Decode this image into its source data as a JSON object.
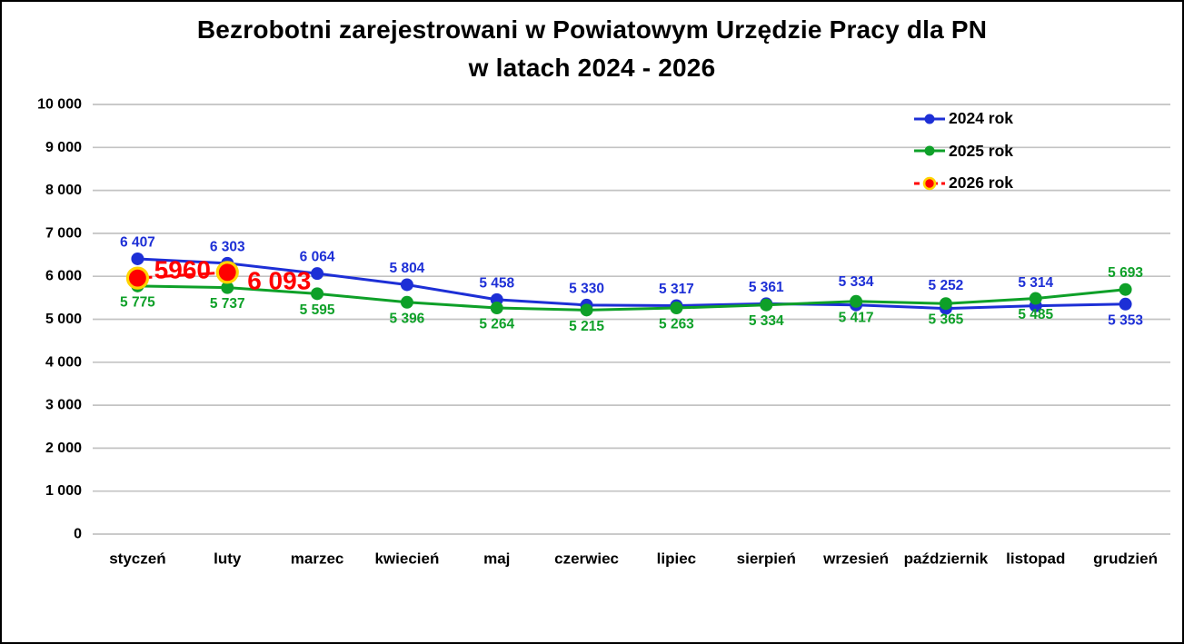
{
  "title": {
    "line1": "Bezrobotni zarejestrowani w Powiatowym Urzędzie Pracy dla PN",
    "line2": "w latach 2024 - 2026"
  },
  "colors": {
    "series_2024": "#1D2FD6",
    "series_2025": "#0EA028",
    "series_2026": "#FF0000",
    "series_2026_marker_ring": "#FFD400",
    "gridline": "#C3C3C3",
    "axis_text": "#000000",
    "background": "#FFFFFF"
  },
  "chart_data": {
    "type": "line",
    "title": "Bezrobotni zarejestrowani w Powiatowym Urzędzie Pracy dla PN w latach 2024 - 2026",
    "categories": [
      "styczeń",
      "luty",
      "marzec",
      "kwiecień",
      "maj",
      "czerwiec",
      "lipiec",
      "sierpień",
      "wrzesień",
      "październik",
      "listopad",
      "grudzień"
    ],
    "y_axis": {
      "min": 0,
      "max": 10000,
      "step": 1000,
      "tick_labels": [
        "0",
        "1 000",
        "2 000",
        "3 000",
        "4 000",
        "5 000",
        "6 000",
        "7 000",
        "8 000",
        "9 000",
        "10 000"
      ]
    },
    "grid": "horizontal",
    "legend_position": "top-right",
    "series": [
      {
        "name": "2024 rok",
        "color": "#1D2FD6",
        "line_style": "solid",
        "marker": "circle",
        "values": [
          6407,
          6303,
          6064,
          5804,
          5458,
          5330,
          5317,
          5361,
          5334,
          5252,
          5314,
          5353
        ],
        "labels": [
          "6 407",
          "6 303",
          "6 064",
          "5 804",
          "5 458",
          "5 330",
          "5 317",
          "5 361",
          "5 334",
          "5 252",
          "5 314",
          "5 353"
        ],
        "label_side": [
          "above",
          "above",
          "above",
          "above",
          "above",
          "above",
          "above",
          "above",
          "above",
          "above",
          "above",
          "below"
        ],
        "label_dy": [
          0,
          0,
          0,
          0,
          0,
          0,
          0,
          0,
          -7,
          -7,
          -7,
          0
        ]
      },
      {
        "name": "2025 rok",
        "color": "#0EA028",
        "line_style": "solid",
        "marker": "circle",
        "values": [
          5775,
          5737,
          5595,
          5396,
          5264,
          5215,
          5263,
          5334,
          5417,
          5365,
          5485,
          5693
        ],
        "labels": [
          "5 775",
          "5 737",
          "5 595",
          "5 396",
          "5 264",
          "5 215",
          "5 263",
          "5 334",
          "5 417",
          "5 365",
          "5 485",
          "5 693"
        ],
        "label_side": [
          "below",
          "below",
          "below",
          "below",
          "below",
          "below",
          "below",
          "below",
          "below",
          "below",
          "below",
          "above"
        ],
        "label_dy": [
          0,
          0,
          0,
          0,
          0,
          0,
          0,
          0,
          0,
          0,
          0,
          0
        ]
      },
      {
        "name": "2026 rok",
        "color": "#FF0000",
        "line_style": "dashed",
        "marker": "circle-ringed",
        "marker_ring": "#FFD400",
        "values": [
          5960,
          6093,
          null,
          null,
          null,
          null,
          null,
          null,
          null,
          null,
          null,
          null
        ],
        "labels": [
          "5960",
          "6 093",
          null,
          null,
          null,
          null,
          null,
          null,
          null,
          null,
          null,
          null
        ],
        "label_side": [
          "segment-mid",
          "right-of-point",
          null,
          null,
          null,
          null,
          null,
          null,
          null,
          null,
          null,
          null
        ],
        "label_dy": [
          0,
          0,
          0,
          0,
          0,
          0,
          0,
          0,
          0,
          0,
          0,
          0
        ]
      }
    ]
  }
}
